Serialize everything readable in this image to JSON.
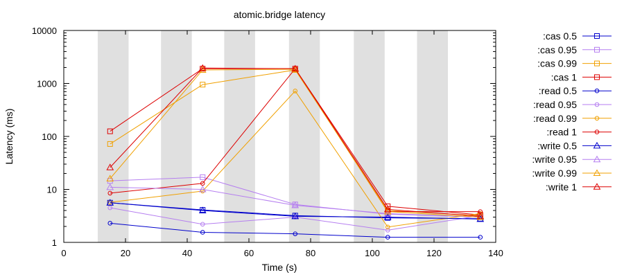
{
  "chart_data": {
    "type": "line",
    "title": "atomic.bridge latency",
    "xlabel": "Time (s)",
    "ylabel": "Latency (ms)",
    "xlim": [
      0,
      140
    ],
    "ylim": [
      1,
      10000
    ],
    "y_scale": "log",
    "x_ticks": [
      0,
      20,
      40,
      60,
      80,
      100,
      120,
      140
    ],
    "x_tick_labels": [
      "0",
      "20",
      "40",
      "60",
      "80",
      "100",
      "120",
      "140"
    ],
    "y_ticks": [
      1,
      10,
      100,
      1000,
      10000
    ],
    "y_tick_labels": [
      "1",
      "10",
      "100",
      "1000",
      "10000"
    ],
    "legend_position": "outside-right",
    "shaded_intervals": [
      [
        11,
        21
      ],
      [
        31.5,
        41.5
      ],
      [
        52,
        62
      ],
      [
        73,
        83
      ],
      [
        94,
        104
      ],
      [
        114.5,
        124.5
      ]
    ],
    "series": [
      {
        "name": ":cas 0.5",
        "color": "#0000cc",
        "marker": "square",
        "x": [
          15,
          45,
          75,
          105,
          135
        ],
        "y": [
          5.6,
          4.1,
          3.2,
          2.9,
          2.8
        ]
      },
      {
        "name": ":cas 0.95",
        "color": "#b57ef0",
        "marker": "square",
        "x": [
          15,
          45,
          75,
          105,
          135
        ],
        "y": [
          14.5,
          17,
          5.2,
          3.4,
          3.0
        ]
      },
      {
        "name": ":cas 0.99",
        "color": "#f0a000",
        "marker": "square",
        "x": [
          15,
          45,
          75,
          105,
          135
        ],
        "y": [
          72,
          950,
          1800,
          4.0,
          3.2
        ]
      },
      {
        "name": ":cas 1",
        "color": "#dd0000",
        "marker": "square",
        "x": [
          15,
          45,
          75,
          105,
          135
        ],
        "y": [
          125,
          1900,
          1900,
          4.8,
          3.3
        ]
      },
      {
        "name": ":read 0.5",
        "color": "#0000cc",
        "marker": "circle",
        "x": [
          15,
          45,
          75,
          105,
          135
        ],
        "y": [
          2.3,
          1.55,
          1.45,
          1.25,
          1.25
        ]
      },
      {
        "name": ":read 0.95",
        "color": "#b57ef0",
        "marker": "circle",
        "x": [
          15,
          45,
          75,
          105,
          135
        ],
        "y": [
          4.5,
          2.2,
          3.0,
          1.7,
          3.2
        ]
      },
      {
        "name": ":read 0.99",
        "color": "#f0a000",
        "marker": "circle",
        "x": [
          15,
          45,
          75,
          105,
          135
        ],
        "y": [
          5.7,
          9.3,
          720,
          1.95,
          3.5
        ]
      },
      {
        "name": ":read 1",
        "color": "#dd0000",
        "marker": "circle",
        "x": [
          15,
          45,
          75,
          105,
          135
        ],
        "y": [
          8.5,
          13,
          1900,
          3.8,
          3.8
        ]
      },
      {
        "name": ":write 0.5",
        "color": "#0000cc",
        "marker": "triangle",
        "x": [
          15,
          45,
          75,
          105,
          135
        ],
        "y": [
          5.6,
          4.0,
          3.1,
          3.0,
          2.75
        ]
      },
      {
        "name": ":write 0.95",
        "color": "#b57ef0",
        "marker": "triangle",
        "x": [
          15,
          45,
          75,
          105,
          135
        ],
        "y": [
          11,
          10,
          5.0,
          3.5,
          3.0
        ]
      },
      {
        "name": ":write 0.99",
        "color": "#f0a000",
        "marker": "triangle",
        "x": [
          15,
          45,
          75,
          105,
          135
        ],
        "y": [
          16,
          1800,
          1850,
          3.8,
          3.0
        ]
      },
      {
        "name": ":write 1",
        "color": "#dd0000",
        "marker": "triangle",
        "x": [
          15,
          45,
          75,
          105,
          135
        ],
        "y": [
          26,
          1950,
          1900,
          4.2,
          3.1
        ]
      }
    ]
  }
}
